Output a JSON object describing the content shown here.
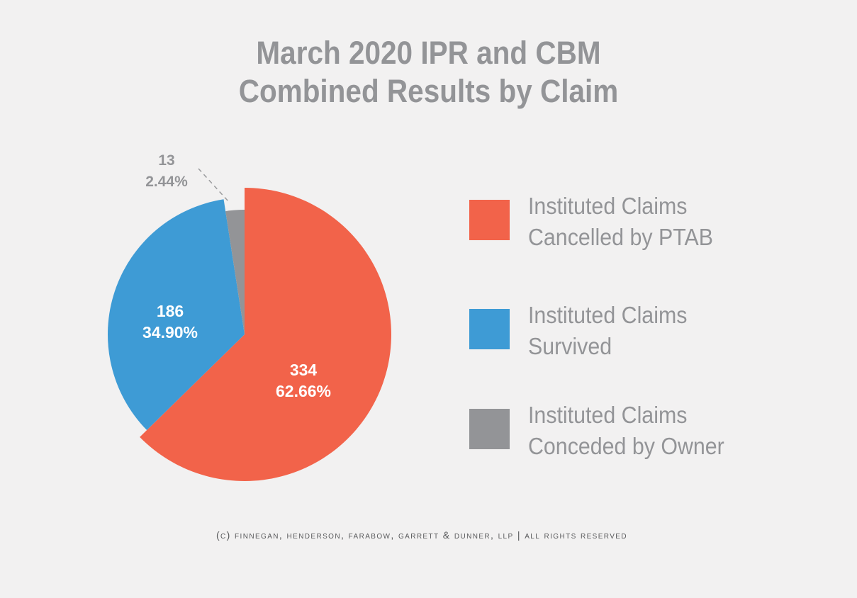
{
  "chart_data": {
    "type": "pie",
    "title_lines": [
      "March 2020 IPR and CBM",
      "Combined Results by Claim"
    ],
    "slices": [
      {
        "legend_lines": [
          "Instituted Claims",
          "Cancelled by PTAB"
        ],
        "value": 334,
        "percent": "62.66%",
        "color": "#f2634a"
      },
      {
        "legend_lines": [
          "Instituted Claims",
          "Survived"
        ],
        "value": 186,
        "percent": "34.90%",
        "color": "#3e9bd5"
      },
      {
        "legend_lines": [
          "Instituted Claims",
          "Conceded by Owner"
        ],
        "value": 13,
        "percent": "2.44%",
        "color": "#939497"
      }
    ],
    "legend_placement": "right"
  },
  "footer": "(c) Finnegan, Henderson, Farabow, Garrett & Dunner, LLP | All Rights Reserved"
}
